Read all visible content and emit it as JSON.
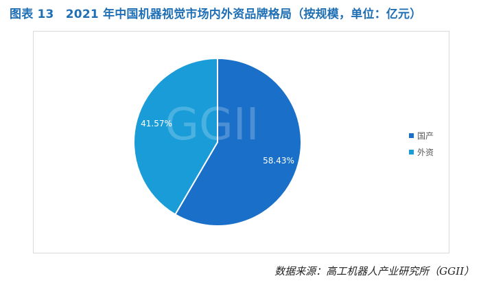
{
  "figure": {
    "title": "图表 13　2021 年中国机器视觉市场内外资品牌格局（按规模，单位：亿元）",
    "watermark": "GGII",
    "source": "数据来源：高工机器人产业研究所（GGII）"
  },
  "chart_data": {
    "type": "pie",
    "labels": [
      "国产",
      "外资"
    ],
    "values": [
      58.43,
      41.57
    ],
    "data_labels": [
      "58.43%",
      "41.57%"
    ],
    "colors": [
      "#1a70c8",
      "#199cd8"
    ],
    "legend_position": "right"
  }
}
